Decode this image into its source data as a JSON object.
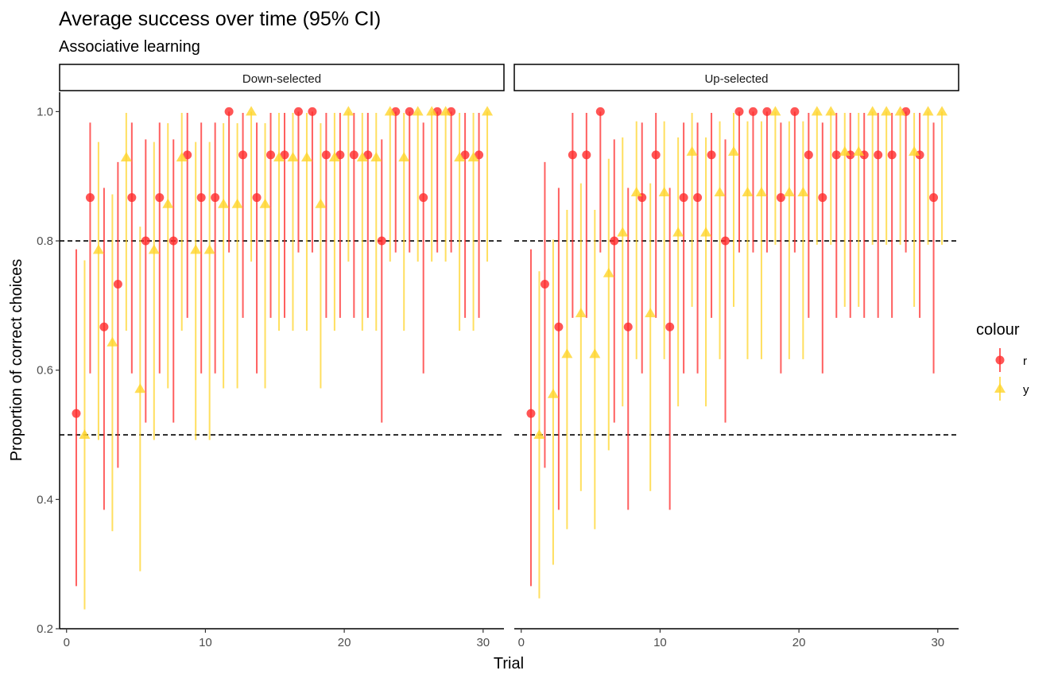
{
  "chart_data": {
    "type": "scatter",
    "title": "Average success over time (95% CI)",
    "subtitle": "Associative learning",
    "xlabel": "Trial",
    "ylabel": "Proportion of correct choices",
    "xlim": [
      -0.5,
      31.5
    ],
    "ylim": [
      0.2,
      1.03
    ],
    "x_ticks": [
      0,
      10,
      20,
      30
    ],
    "y_ticks": [
      0.2,
      0.4,
      0.6,
      0.8,
      1.0
    ],
    "y_tick_labels": [
      "0.2",
      "0.4",
      "0.6",
      "0.8",
      "1.0"
    ],
    "reference_lines": [
      0.5,
      0.8
    ],
    "grid": false,
    "legend": {
      "title": "colour",
      "position": "right",
      "entries": [
        {
          "label": "r",
          "color": "#FF2A2A",
          "shape": "circle"
        },
        {
          "label": "y",
          "color": "#FFD42A",
          "shape": "triangle"
        }
      ]
    },
    "panels": [
      {
        "name": "Down-selected",
        "series": [
          {
            "name": "r",
            "x": [
              1,
              2,
              3,
              4,
              5,
              6,
              7,
              8,
              9,
              10,
              11,
              12,
              13,
              14,
              15,
              16,
              17,
              18,
              19,
              20,
              21,
              22,
              23,
              24,
              25,
              26,
              27,
              28,
              29,
              30
            ],
            "y": [
              0.533,
              0.867,
              0.667,
              0.733,
              0.867,
              0.8,
              0.867,
              0.8,
              0.933,
              0.867,
              0.867,
              1.0,
              0.933,
              0.867,
              0.933,
              0.933,
              1.0,
              1.0,
              0.933,
              0.933,
              0.933,
              0.933,
              0.8,
              1.0,
              1.0,
              0.867,
              1.0,
              1.0,
              0.933,
              0.933
            ],
            "lower": [
              0.266,
              0.595,
              0.384,
              0.449,
              0.595,
              0.519,
              0.595,
              0.519,
              0.681,
              0.595,
              0.595,
              0.782,
              0.681,
              0.595,
              0.681,
              0.681,
              0.782,
              0.782,
              0.681,
              0.681,
              0.681,
              0.681,
              0.519,
              0.782,
              0.782,
              0.595,
              0.782,
              0.782,
              0.681,
              0.681
            ],
            "upper": [
              0.787,
              0.983,
              0.882,
              0.922,
              0.983,
              0.957,
              0.983,
              0.957,
              0.998,
              0.983,
              0.983,
              1.0,
              0.998,
              0.983,
              0.998,
              0.998,
              1.0,
              1.0,
              0.998,
              0.998,
              0.998,
              0.998,
              0.957,
              1.0,
              1.0,
              0.983,
              1.0,
              1.0,
              0.998,
              0.998
            ]
          },
          {
            "name": "y",
            "x": [
              1,
              2,
              3,
              4,
              5,
              6,
              7,
              8,
              9,
              10,
              11,
              12,
              13,
              14,
              15,
              16,
              17,
              18,
              19,
              20,
              21,
              22,
              23,
              24,
              25,
              26,
              27,
              28,
              29,
              30
            ],
            "y": [
              0.5,
              0.786,
              0.643,
              0.929,
              0.571,
              0.786,
              0.857,
              0.929,
              0.786,
              0.786,
              0.857,
              0.857,
              1.0,
              0.857,
              0.929,
              0.929,
              0.929,
              0.857,
              0.929,
              1.0,
              0.929,
              0.929,
              1.0,
              0.929,
              1.0,
              1.0,
              1.0,
              0.929,
              0.929,
              1.0
            ],
            "lower": [
              0.23,
              0.492,
              0.351,
              0.661,
              0.289,
              0.492,
              0.572,
              0.661,
              0.492,
              0.492,
              0.572,
              0.572,
              0.768,
              0.572,
              0.661,
              0.661,
              0.661,
              0.572,
              0.661,
              0.768,
              0.661,
              0.661,
              0.768,
              0.661,
              0.768,
              0.768,
              0.768,
              0.661,
              0.661,
              0.768
            ],
            "upper": [
              0.77,
              0.953,
              0.872,
              0.998,
              0.822,
              0.953,
              0.982,
              0.998,
              0.953,
              0.953,
              0.982,
              0.982,
              1.0,
              0.982,
              0.998,
              0.998,
              0.998,
              0.982,
              0.998,
              1.0,
              0.998,
              0.998,
              1.0,
              0.998,
              1.0,
              1.0,
              1.0,
              0.998,
              0.998,
              1.0
            ]
          }
        ]
      },
      {
        "name": "Up-selected",
        "series": [
          {
            "name": "r",
            "x": [
              1,
              2,
              3,
              4,
              5,
              6,
              7,
              8,
              9,
              10,
              11,
              12,
              13,
              14,
              15,
              16,
              17,
              18,
              19,
              20,
              21,
              22,
              23,
              24,
              25,
              26,
              27,
              28,
              29,
              30
            ],
            "y": [
              0.533,
              0.733,
              0.667,
              0.933,
              0.933,
              1.0,
              0.8,
              0.667,
              0.867,
              0.933,
              0.667,
              0.867,
              0.867,
              0.933,
              0.8,
              1.0,
              1.0,
              1.0,
              0.867,
              1.0,
              0.933,
              0.867,
              0.933,
              0.933,
              0.933,
              0.933,
              0.933,
              1.0,
              0.933,
              0.867
            ],
            "lower": [
              0.266,
              0.449,
              0.384,
              0.681,
              0.681,
              0.782,
              0.519,
              0.384,
              0.595,
              0.681,
              0.384,
              0.595,
              0.595,
              0.681,
              0.519,
              0.782,
              0.782,
              0.782,
              0.595,
              0.782,
              0.681,
              0.595,
              0.681,
              0.681,
              0.681,
              0.681,
              0.681,
              0.782,
              0.681,
              0.595
            ],
            "upper": [
              0.787,
              0.922,
              0.882,
              0.998,
              0.998,
              1.0,
              0.957,
              0.882,
              0.983,
              0.998,
              0.882,
              0.983,
              0.983,
              0.998,
              0.957,
              1.0,
              1.0,
              1.0,
              0.983,
              1.0,
              0.998,
              0.983,
              0.998,
              0.998,
              0.998,
              0.998,
              0.998,
              1.0,
              0.998,
              0.983
            ]
          },
          {
            "name": "y",
            "x": [
              1,
              2,
              3,
              4,
              5,
              6,
              7,
              8,
              9,
              10,
              11,
              12,
              13,
              14,
              15,
              16,
              17,
              18,
              19,
              20,
              21,
              22,
              23,
              24,
              25,
              26,
              27,
              28,
              29,
              30
            ],
            "y": [
              0.5,
              0.563,
              0.625,
              0.688,
              0.625,
              0.75,
              0.813,
              0.875,
              0.688,
              0.875,
              0.813,
              0.938,
              0.813,
              0.875,
              0.938,
              0.875,
              0.875,
              1.0,
              0.875,
              0.875,
              1.0,
              1.0,
              0.938,
              0.938,
              1.0,
              1.0,
              1.0,
              0.938,
              1.0,
              1.0
            ],
            "lower": [
              0.247,
              0.299,
              0.354,
              0.413,
              0.354,
              0.476,
              0.544,
              0.617,
              0.413,
              0.617,
              0.544,
              0.698,
              0.544,
              0.617,
              0.698,
              0.617,
              0.617,
              0.794,
              0.617,
              0.617,
              0.794,
              0.794,
              0.698,
              0.698,
              0.794,
              0.794,
              0.794,
              0.698,
              0.794,
              0.794
            ],
            "upper": [
              0.753,
              0.802,
              0.848,
              0.889,
              0.848,
              0.927,
              0.96,
              0.985,
              0.889,
              0.985,
              0.96,
              0.998,
              0.96,
              0.985,
              0.998,
              0.985,
              0.985,
              1.0,
              0.985,
              0.985,
              1.0,
              1.0,
              0.998,
              0.998,
              1.0,
              1.0,
              1.0,
              0.998,
              1.0,
              1.0
            ]
          }
        ]
      }
    ]
  }
}
